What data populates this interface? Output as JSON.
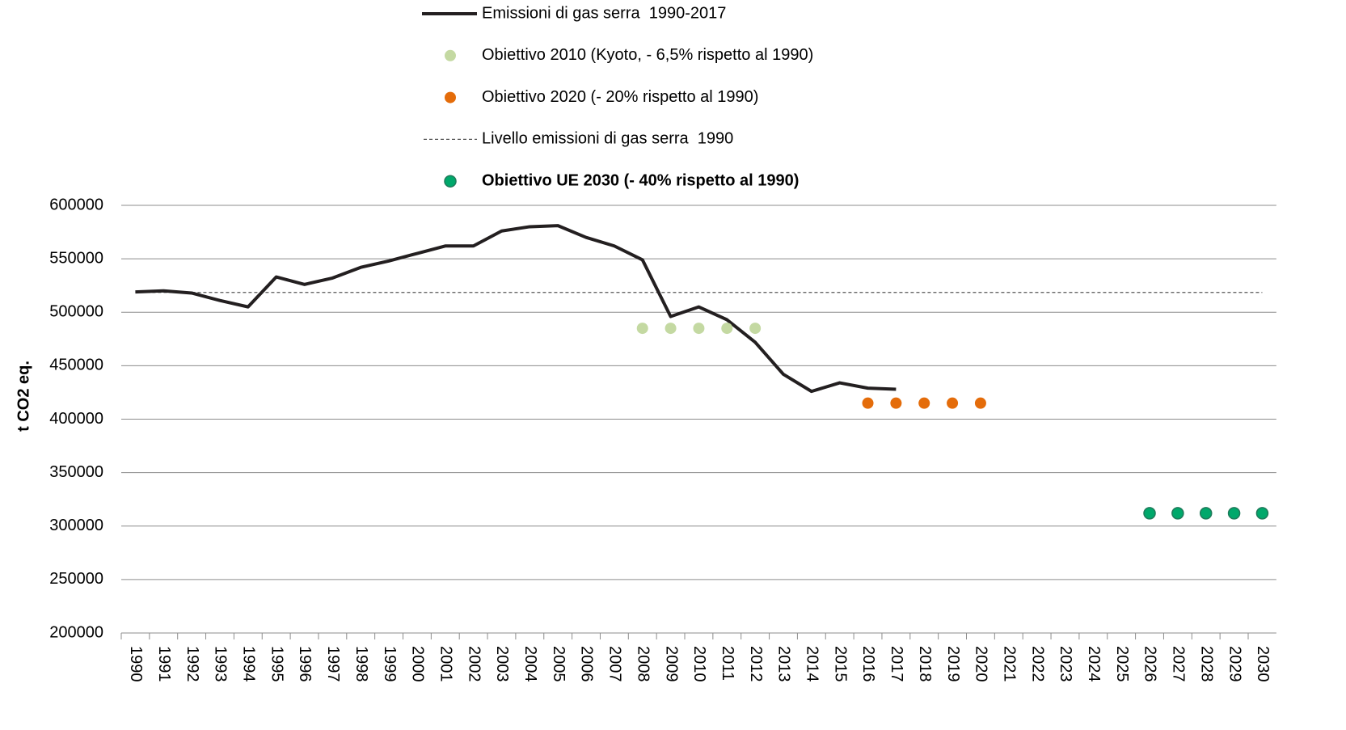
{
  "chart_data": {
    "type": "line",
    "y_label": "t CO2 eq.",
    "categories": [
      "1990",
      "1991",
      "1992",
      "1993",
      "1994",
      "1995",
      "1996",
      "1997",
      "1998",
      "1999",
      "2000",
      "2001",
      "2002",
      "2003",
      "2004",
      "2005",
      "2006",
      "2007",
      "2008",
      "2009",
      "2010",
      "2011",
      "2012",
      "2013",
      "2014",
      "2015",
      "2016",
      "2017",
      "2018",
      "2019",
      "2020",
      "2021",
      "2022",
      "2023",
      "2024",
      "2025",
      "2026",
      "2027",
      "2028",
      "2029",
      "2030"
    ],
    "ylim": [
      200000,
      600000
    ],
    "yticks": [
      200000,
      250000,
      300000,
      350000,
      400000,
      450000,
      500000,
      550000,
      600000
    ],
    "grid": true,
    "legend": "top",
    "series": [
      {
        "name": "Emissioni di gas serra  1990-2017",
        "color": "#231f20",
        "style": "line",
        "values": [
          519000,
          520000,
          518000,
          511000,
          505000,
          533000,
          526000,
          532000,
          542000,
          548000,
          555000,
          562000,
          562000,
          576000,
          580000,
          581000,
          570000,
          562000,
          549000,
          496000,
          505000,
          493000,
          472000,
          442000,
          426000,
          434000,
          429000,
          428000,
          null,
          null,
          null,
          null,
          null,
          null,
          null,
          null,
          null,
          null,
          null,
          null,
          null
        ]
      },
      {
        "name": "Obiettivo 2010 (Kyoto, - 6,5% rispetto al 1990)",
        "color": "#c4d9a2",
        "style": "marker",
        "values": [
          null,
          null,
          null,
          null,
          null,
          null,
          null,
          null,
          null,
          null,
          null,
          null,
          null,
          null,
          null,
          null,
          null,
          null,
          485000,
          485000,
          485000,
          485000,
          485000,
          null,
          null,
          null,
          null,
          null,
          null,
          null,
          null,
          null,
          null,
          null,
          null,
          null,
          null,
          null,
          null,
          null,
          null
        ]
      },
      {
        "name": "Obiettivo 2020 (- 20% rispetto al 1990)",
        "color": "#e46c0a",
        "style": "marker",
        "values": [
          null,
          null,
          null,
          null,
          null,
          null,
          null,
          null,
          null,
          null,
          null,
          null,
          null,
          null,
          null,
          null,
          null,
          null,
          null,
          null,
          null,
          null,
          null,
          null,
          null,
          null,
          415000,
          415000,
          415000,
          415000,
          415000,
          null,
          null,
          null,
          null,
          null,
          null,
          null,
          null,
          null,
          null
        ]
      },
      {
        "name": "Livello emissioni di gas serra  1990",
        "color": "#555555",
        "style": "dashed",
        "values": [
          518500,
          518500,
          518500,
          518500,
          518500,
          518500,
          518500,
          518500,
          518500,
          518500,
          518500,
          518500,
          518500,
          518500,
          518500,
          518500,
          518500,
          518500,
          518500,
          518500,
          518500,
          518500,
          518500,
          518500,
          518500,
          518500,
          518500,
          518500,
          518500,
          518500,
          518500,
          518500,
          518500,
          518500,
          518500,
          518500,
          518500,
          518500,
          518500,
          518500,
          518500
        ]
      },
      {
        "name": "Obiettivo UE 2030 (- 40% rispetto al 1990)",
        "color": "#00a86b",
        "style": "marker",
        "bold": true,
        "values": [
          null,
          null,
          null,
          null,
          null,
          null,
          null,
          null,
          null,
          null,
          null,
          null,
          null,
          null,
          null,
          null,
          null,
          null,
          null,
          null,
          null,
          null,
          null,
          null,
          null,
          null,
          null,
          null,
          null,
          null,
          null,
          null,
          null,
          null,
          null,
          null,
          312000,
          312000,
          312000,
          312000,
          312000
        ]
      }
    ]
  }
}
